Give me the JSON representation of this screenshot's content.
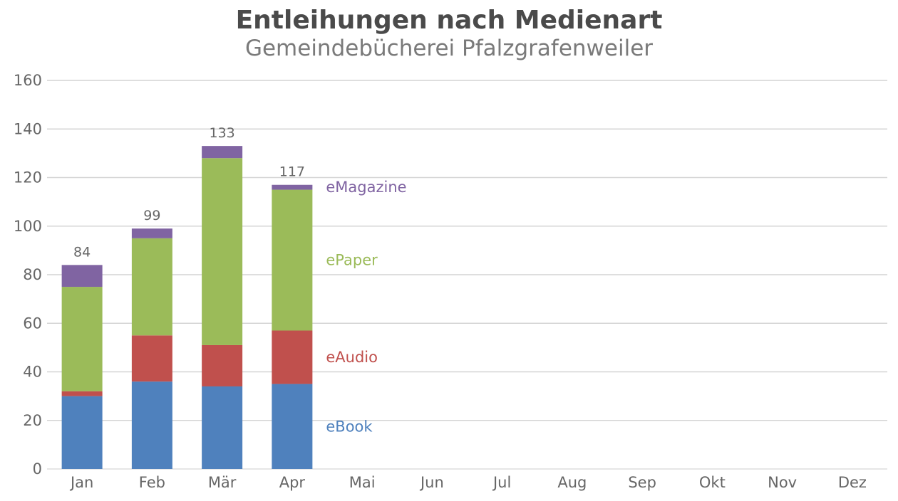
{
  "title": "Entleihungen nach Medienart",
  "subtitle": "Gemeindebücherei Pfalzgrafenweiler",
  "chart_data": {
    "type": "bar",
    "stacked": true,
    "title": "Entleihungen nach Medienart",
    "subtitle": "Gemeindebücherei Pfalzgrafenweiler",
    "categories": [
      "Jan",
      "Feb",
      "Mär",
      "Apr",
      "Mai",
      "Jun",
      "Jul",
      "Aug",
      "Sep",
      "Okt",
      "Nov",
      "Dez"
    ],
    "series": [
      {
        "name": "eBook",
        "color": "#4f81bd",
        "values": [
          30,
          36,
          34,
          35,
          null,
          null,
          null,
          null,
          null,
          null,
          null,
          null
        ]
      },
      {
        "name": "eAudio",
        "color": "#c0504d",
        "values": [
          2,
          19,
          17,
          22,
          null,
          null,
          null,
          null,
          null,
          null,
          null,
          null
        ]
      },
      {
        "name": "ePaper",
        "color": "#9bbb59",
        "values": [
          43,
          40,
          77,
          58,
          null,
          null,
          null,
          null,
          null,
          null,
          null,
          null
        ]
      },
      {
        "name": "eMagazine",
        "color": "#8064a2",
        "values": [
          9,
          4,
          5,
          2,
          null,
          null,
          null,
          null,
          null,
          null,
          null,
          null
        ]
      }
    ],
    "totals": [
      84,
      99,
      133,
      117,
      null,
      null,
      null,
      null,
      null,
      null,
      null,
      null
    ],
    "ylim": [
      0,
      160
    ],
    "yticks": [
      0,
      20,
      40,
      60,
      80,
      100,
      120,
      140,
      160
    ],
    "grid": true,
    "legend": "inline-right-of-last-bar"
  }
}
